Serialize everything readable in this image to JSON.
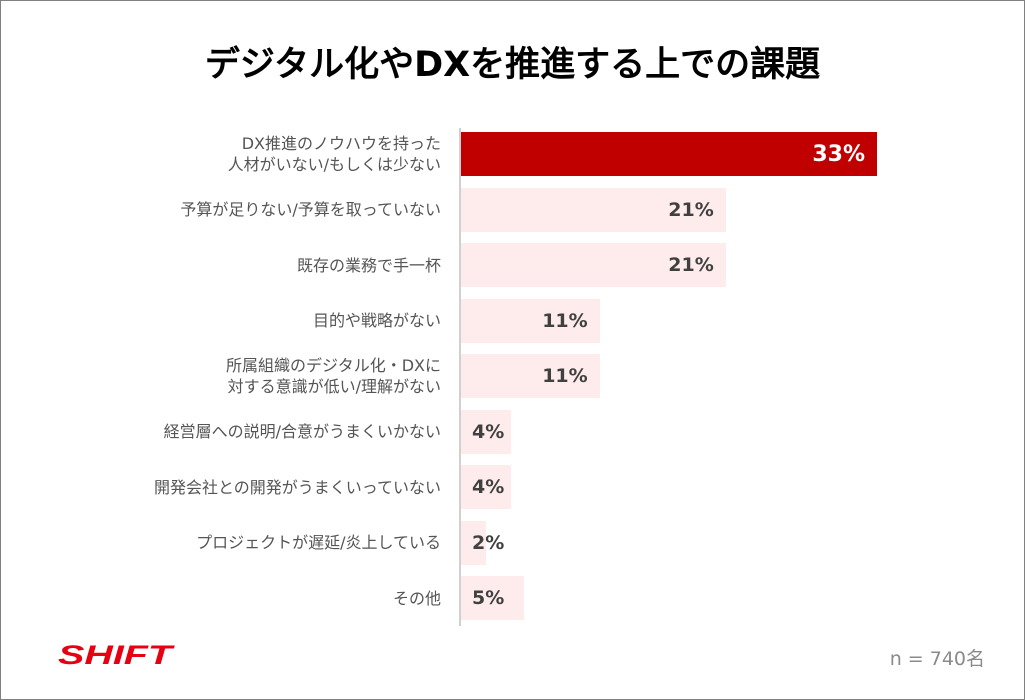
{
  "chart_data": {
    "type": "bar",
    "orientation": "horizontal",
    "title": "デジタル化やDXを推進する上での課題",
    "categories": [
      "DX推進のノウハウを持った\n人材がいない/もしくは少ない",
      "予算が足りない/予算を取っていない",
      "既存の業務で手一杯",
      "目的や戦略がない",
      "所属組織のデジタル化・DXに\n対する意識が低い/理解がない",
      "経営層への説明/合意がうまくいかない",
      "開発会社との開発がうまくいっていない",
      "プロジェクトが遅延/炎上している",
      "その他"
    ],
    "values": [
      33,
      21,
      21,
      11,
      11,
      4,
      4,
      2,
      5
    ],
    "value_labels": [
      "33%",
      "21%",
      "21%",
      "11%",
      "11%",
      "4%",
      "4%",
      "2%",
      "5%"
    ],
    "highlight_index": 0,
    "xlim": [
      0,
      33
    ],
    "grid": false,
    "legend": "none",
    "colors": {
      "highlight": "#c00000",
      "bar": "#fdeceb"
    }
  },
  "footer": {
    "logo_text": "SHIFT",
    "sample_size": "n = 740名"
  }
}
